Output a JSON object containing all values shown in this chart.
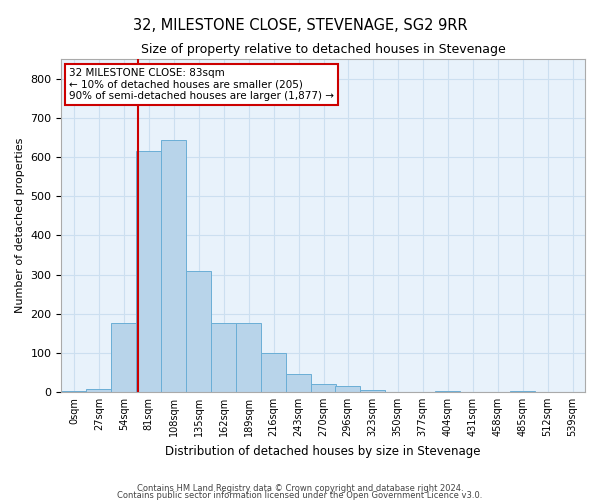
{
  "title": "32, MILESTONE CLOSE, STEVENAGE, SG2 9RR",
  "subtitle": "Size of property relative to detached houses in Stevenage",
  "xlabel": "Distribution of detached houses by size in Stevenage",
  "ylabel": "Number of detached properties",
  "bar_color": "#b8d4ea",
  "bar_edge_color": "#6aaed6",
  "grid_color": "#ccdff0",
  "background_color": "#e8f2fb",
  "annotation_box_color": "#cc0000",
  "vline_color": "#cc0000",
  "vline_x": 83,
  "annotation_text": "32 MILESTONE CLOSE: 83sqm\n← 10% of detached houses are smaller (205)\n90% of semi-detached houses are larger (1,877) →",
  "categories": [
    "0sqm",
    "27sqm",
    "54sqm",
    "81sqm",
    "108sqm",
    "135sqm",
    "162sqm",
    "189sqm",
    "216sqm",
    "243sqm",
    "270sqm",
    "296sqm",
    "323sqm",
    "350sqm",
    "377sqm",
    "404sqm",
    "431sqm",
    "458sqm",
    "485sqm",
    "512sqm",
    "539sqm"
  ],
  "bin_edges": [
    0,
    27,
    54,
    81,
    108,
    135,
    162,
    189,
    216,
    243,
    270,
    296,
    323,
    350,
    377,
    404,
    431,
    458,
    485,
    512,
    539
  ],
  "values": [
    3,
    8,
    175,
    615,
    645,
    308,
    175,
    175,
    100,
    45,
    20,
    15,
    5,
    0,
    0,
    3,
    0,
    0,
    3,
    0,
    0
  ],
  "ylim": [
    0,
    850
  ],
  "yticks": [
    0,
    100,
    200,
    300,
    400,
    500,
    600,
    700,
    800
  ],
  "footer1": "Contains HM Land Registry data © Crown copyright and database right 2024.",
  "footer2": "Contains public sector information licensed under the Open Government Licence v3.0."
}
